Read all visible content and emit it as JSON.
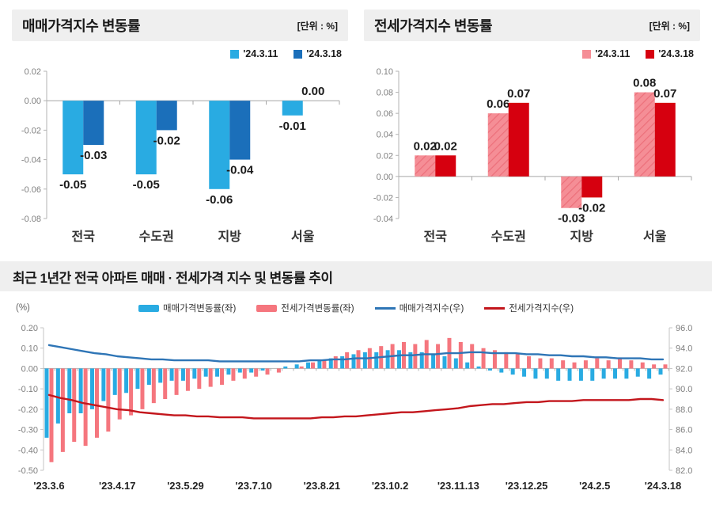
{
  "chart_data": [
    {
      "id": "sale_price_change_by_region",
      "type": "bar",
      "title": "매매가격지수 변동률",
      "unit_label": "[단위 : %]",
      "categories": [
        "전국",
        "수도권",
        "지방",
        "서울"
      ],
      "series": [
        {
          "name": "'24.3.11",
          "color": "#29ABE2",
          "values": [
            -0.05,
            -0.05,
            -0.06,
            -0.01
          ]
        },
        {
          "name": "'24.3.18",
          "color": "#1B6FBA",
          "values": [
            -0.03,
            -0.02,
            -0.04,
            0.0
          ]
        }
      ],
      "ylim": [
        -0.08,
        0.02
      ],
      "yticks": [
        0.02,
        0.0,
        -0.02,
        -0.04,
        -0.06,
        -0.08
      ],
      "grid": false,
      "legend_position": "top-right",
      "value_labels": true
    },
    {
      "id": "jeonse_price_change_by_region",
      "type": "bar",
      "title": "전세가격지수 변동률",
      "unit_label": "[단위 : %]",
      "categories": [
        "전국",
        "수도권",
        "지방",
        "서울"
      ],
      "series": [
        {
          "name": "'24.3.11",
          "color": "#F58E96",
          "hatch": true,
          "hatch_color": "#EC6F7A",
          "values": [
            0.02,
            0.06,
            -0.03,
            0.08
          ]
        },
        {
          "name": "'24.3.18",
          "color": "#D6000F",
          "values": [
            0.02,
            0.07,
            -0.02,
            0.07
          ]
        }
      ],
      "ylim": [
        -0.04,
        0.1
      ],
      "yticks": [
        0.1,
        0.08,
        0.06,
        0.04,
        0.02,
        0.0,
        -0.02,
        -0.04
      ],
      "grid": false,
      "legend_position": "top-right",
      "value_labels": true
    },
    {
      "id": "national_apartment_price_trend",
      "type": "combo",
      "title": "최근 1년간 전국 아파트 매매 · 전세가격 지수 및 변동률 추이",
      "left_axis_label": "(%)",
      "x": [
        "'23.3.6",
        "'23.3.13",
        "'23.3.20",
        "'23.3.27",
        "'23.4.3",
        "'23.4.10",
        "'23.4.17",
        "'23.4.24",
        "'23.5.1",
        "'23.5.8",
        "'23.5.15",
        "'23.5.22",
        "'23.5.29",
        "'23.6.5",
        "'23.6.12",
        "'23.6.19",
        "'23.6.26",
        "'23.7.3",
        "'23.7.10",
        "'23.7.17",
        "'23.7.24",
        "'23.7.31",
        "'23.8.7",
        "'23.8.14",
        "'23.8.21",
        "'23.8.28",
        "'23.9.4",
        "'23.9.11",
        "'23.9.18",
        "'23.9.25",
        "'23.10.2",
        "'23.10.9",
        "'23.10.16",
        "'23.10.23",
        "'23.10.30",
        "'23.11.6",
        "'23.11.13",
        "'23.11.20",
        "'23.11.27",
        "'23.12.4",
        "'23.12.11",
        "'23.12.18",
        "'23.12.25",
        "'24.1.1",
        "'24.1.8",
        "'24.1.15",
        "'24.1.22",
        "'24.1.29",
        "'24.2.5",
        "'24.2.12",
        "'24.2.19",
        "'24.2.26",
        "'24.3.4",
        "'24.3.11",
        "'24.3.18"
      ],
      "x_tick_labels": [
        "'23.3.6",
        "'23.4.17",
        "'23.5.29",
        "'23.7.10",
        "'23.8.21",
        "'23.10.2",
        "'23.11.13",
        "'23.12.25",
        "'24.2.5",
        "'24.3.18"
      ],
      "x_label_every": 6,
      "bar_series": [
        {
          "name": "매매가격변동률(좌)",
          "axis": "left",
          "color": "#29ABE2",
          "values": [
            -0.34,
            -0.27,
            -0.22,
            -0.22,
            -0.2,
            -0.16,
            -0.13,
            -0.12,
            -0.1,
            -0.08,
            -0.07,
            -0.06,
            -0.06,
            -0.05,
            -0.04,
            -0.04,
            -0.03,
            -0.02,
            -0.02,
            -0.01,
            0.0,
            0.01,
            0.02,
            0.03,
            0.04,
            0.05,
            0.06,
            0.07,
            0.08,
            0.08,
            0.09,
            0.09,
            0.08,
            0.08,
            0.07,
            0.06,
            0.05,
            0.03,
            0.01,
            -0.01,
            -0.02,
            -0.03,
            -0.04,
            -0.05,
            -0.05,
            -0.06,
            -0.06,
            -0.06,
            -0.06,
            -0.05,
            -0.05,
            -0.05,
            -0.04,
            -0.05,
            -0.03
          ]
        },
        {
          "name": "전세가격변동률(좌)",
          "axis": "left",
          "color": "#F5767E",
          "values": [
            -0.46,
            -0.41,
            -0.36,
            -0.38,
            -0.34,
            -0.31,
            -0.25,
            -0.23,
            -0.2,
            -0.17,
            -0.15,
            -0.13,
            -0.11,
            -0.1,
            -0.09,
            -0.08,
            -0.06,
            -0.05,
            -0.04,
            -0.03,
            -0.02,
            0.0,
            0.01,
            0.03,
            0.04,
            0.06,
            0.08,
            0.09,
            0.1,
            0.11,
            0.12,
            0.13,
            0.12,
            0.14,
            0.12,
            0.15,
            0.13,
            0.12,
            0.1,
            0.09,
            0.08,
            0.07,
            0.06,
            0.05,
            0.05,
            0.04,
            0.03,
            0.04,
            0.05,
            0.04,
            0.05,
            0.04,
            0.03,
            0.02,
            0.02
          ]
        }
      ],
      "line_series": [
        {
          "name": "매매가격지수(우)",
          "axis": "right",
          "color": "#2E75B6",
          "values": [
            94.3,
            94.1,
            93.9,
            93.7,
            93.5,
            93.4,
            93.2,
            93.1,
            93.0,
            92.9,
            92.9,
            92.8,
            92.8,
            92.8,
            92.8,
            92.7,
            92.7,
            92.7,
            92.7,
            92.7,
            92.7,
            92.7,
            92.7,
            92.8,
            92.8,
            92.9,
            92.9,
            93.0,
            93.0,
            93.1,
            93.2,
            93.3,
            93.3,
            93.4,
            93.4,
            93.5,
            93.5,
            93.6,
            93.6,
            93.5,
            93.5,
            93.5,
            93.4,
            93.4,
            93.3,
            93.3,
            93.2,
            93.2,
            93.1,
            93.1,
            93.0,
            93.0,
            93.0,
            92.9,
            92.9
          ]
        },
        {
          "name": "전세가격지수(우)",
          "axis": "right",
          "color": "#C3161C",
          "values": [
            89.4,
            89.1,
            88.9,
            88.6,
            88.4,
            88.2,
            88.0,
            87.9,
            87.7,
            87.6,
            87.5,
            87.4,
            87.4,
            87.3,
            87.3,
            87.2,
            87.2,
            87.2,
            87.1,
            87.1,
            87.1,
            87.1,
            87.1,
            87.1,
            87.2,
            87.2,
            87.3,
            87.3,
            87.4,
            87.5,
            87.6,
            87.7,
            87.7,
            87.8,
            87.9,
            88.0,
            88.1,
            88.3,
            88.4,
            88.5,
            88.5,
            88.6,
            88.7,
            88.7,
            88.8,
            88.8,
            88.8,
            88.9,
            88.9,
            88.9,
            88.9,
            88.9,
            89.0,
            89.0,
            88.9
          ]
        }
      ],
      "left_ylim": [
        -0.5,
        0.2
      ],
      "left_yticks": [
        0.2,
        0.1,
        0.0,
        -0.1,
        -0.2,
        -0.3,
        -0.4,
        -0.5
      ],
      "right_ylim": [
        82.0,
        96.0
      ],
      "right_yticks": [
        96.0,
        94.0,
        92.0,
        90.0,
        88.0,
        86.0,
        84.0,
        82.0
      ],
      "legend_position": "top-center",
      "grid": false
    }
  ]
}
